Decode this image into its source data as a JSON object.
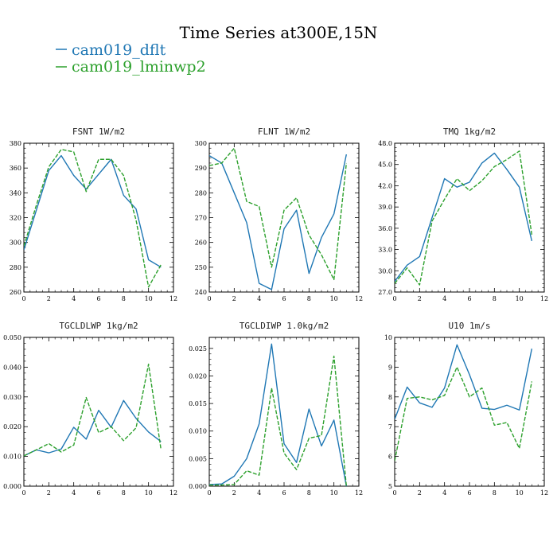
{
  "figure": {
    "title": "Time Series at300E,15N",
    "legend": [
      {
        "name": "cam019_dflt",
        "color": "#1f77b4",
        "dash": "solid"
      },
      {
        "name": "cam019_lminwp2",
        "color": "#2ca02c",
        "dash": "dashed"
      }
    ]
  },
  "chart_data": [
    {
      "type": "line",
      "title": "FSNT  1W/m2",
      "x": [
        0,
        1,
        2,
        3,
        4,
        5,
        6,
        7,
        8,
        9,
        10,
        11
      ],
      "xlim": [
        0,
        12
      ],
      "xticks": [
        0,
        2,
        4,
        6,
        8,
        10,
        12
      ],
      "xtick_labels": [
        "0",
        "2",
        "4",
        "6",
        "8",
        "10",
        "12"
      ],
      "ylim": [
        260,
        380
      ],
      "yticks": [
        260,
        280,
        300,
        320,
        340,
        360,
        380
      ],
      "ytick_labels": [
        "260",
        "280",
        "300",
        "320",
        "340",
        "360",
        "380"
      ],
      "series": [
        {
          "name": "cam019_dflt",
          "values": [
            294,
            326,
            358,
            370,
            354,
            343,
            355,
            367,
            338,
            327,
            286,
            280
          ]
        },
        {
          "name": "cam019_lminwp2",
          "values": [
            297,
            330,
            361,
            375,
            373,
            341,
            367,
            367,
            354,
            318,
            264,
            282
          ]
        }
      ]
    },
    {
      "type": "line",
      "title": "FLNT  1W/m2",
      "x": [
        0,
        1,
        2,
        3,
        4,
        5,
        6,
        7,
        8,
        9,
        10,
        11
      ],
      "xlim": [
        0,
        12
      ],
      "xticks": [
        0,
        2,
        4,
        6,
        8,
        10,
        12
      ],
      "xtick_labels": [
        "0",
        "2",
        "4",
        "6",
        "8",
        "10",
        "12"
      ],
      "ylim": [
        240,
        300
      ],
      "yticks": [
        240,
        250,
        260,
        270,
        280,
        290,
        300
      ],
      "ytick_labels": [
        "240",
        "250",
        "260",
        "270",
        "280",
        "290",
        "300"
      ],
      "series": [
        {
          "name": "cam019_dflt",
          "values": [
            295,
            292,
            280,
            268,
            243.5,
            241,
            265.5,
            273,
            247.5,
            262,
            271.5,
            295.5
          ]
        },
        {
          "name": "cam019_lminwp2",
          "values": [
            291,
            292,
            298,
            276.5,
            274.5,
            250,
            273,
            278,
            263,
            255,
            245,
            292
          ]
        }
      ]
    },
    {
      "type": "line",
      "title": "TMQ  1kg/m2",
      "x": [
        0,
        1,
        2,
        3,
        4,
        5,
        6,
        7,
        8,
        9,
        10,
        11
      ],
      "xlim": [
        0,
        12
      ],
      "xticks": [
        0,
        2,
        4,
        6,
        8,
        10,
        12
      ],
      "xtick_labels": [
        "0",
        "2",
        "4",
        "6",
        "8",
        "10",
        "12"
      ],
      "ylim": [
        27,
        48
      ],
      "yticks": [
        27,
        30,
        33,
        36,
        39,
        42,
        45,
        48
      ],
      "ytick_labels": [
        "27.0",
        "30.0",
        "33.0",
        "36.0",
        "39.0",
        "42.0",
        "45.0",
        "48.0"
      ],
      "series": [
        {
          "name": "cam019_dflt",
          "values": [
            28.5,
            30.8,
            32,
            37.5,
            43,
            41.8,
            42.5,
            45.2,
            46.6,
            44.3,
            41.8,
            34.2
          ]
        },
        {
          "name": "cam019_lminwp2",
          "values": [
            28.2,
            30.4,
            28,
            37,
            40.1,
            43,
            41.3,
            42.7,
            44.7,
            45.7,
            46.9,
            35.1
          ]
        }
      ]
    },
    {
      "type": "line",
      "title": "TGCLDLWP  1kg/m2",
      "x": [
        0,
        1,
        2,
        3,
        4,
        5,
        6,
        7,
        8,
        9,
        10,
        11
      ],
      "xlim": [
        0,
        12
      ],
      "xticks": [
        0,
        2,
        4,
        6,
        8,
        10,
        12
      ],
      "xtick_labels": [
        "0",
        "2",
        "4",
        "6",
        "8",
        "10",
        "12"
      ],
      "ylim": [
        0,
        0.05
      ],
      "yticks": [
        0,
        0.01,
        0.02,
        0.03,
        0.04,
        0.05
      ],
      "ytick_labels": [
        "0.000",
        "0.010",
        "0.020",
        "0.030",
        "0.040",
        "0.050"
      ],
      "series": [
        {
          "name": "cam019_dflt",
          "values": [
            0.0102,
            0.0122,
            0.0112,
            0.0125,
            0.0198,
            0.0158,
            0.0255,
            0.0198,
            0.0288,
            0.0228,
            0.0182,
            0.015
          ]
        },
        {
          "name": "cam019_lminwp2",
          "values": [
            0.0102,
            0.0122,
            0.0143,
            0.0115,
            0.0138,
            0.0298,
            0.018,
            0.02,
            0.0153,
            0.0196,
            0.041,
            0.0123
          ]
        }
      ]
    },
    {
      "type": "line",
      "title": "TGCLDIWP  1.0kg/m2",
      "x": [
        0,
        1,
        2,
        3,
        4,
        5,
        6,
        7,
        8,
        9,
        10,
        11
      ],
      "xlim": [
        0,
        12
      ],
      "xticks": [
        0,
        2,
        4,
        6,
        8,
        10,
        12
      ],
      "xtick_labels": [
        "0",
        "2",
        "4",
        "6",
        "8",
        "10",
        "12"
      ],
      "ylim": [
        0,
        0.027
      ],
      "yticks": [
        0,
        0.005,
        0.01,
        0.015,
        0.02,
        0.025
      ],
      "ytick_labels": [
        "0.000",
        "0.005",
        "0.010",
        "0.015",
        "0.020",
        "0.025"
      ],
      "series": [
        {
          "name": "cam019_dflt",
          "values": [
            0.0003,
            0.0004,
            0.0018,
            0.005,
            0.0113,
            0.0258,
            0.0077,
            0.0043,
            0.014,
            0.0073,
            0.012,
            0
          ]
        },
        {
          "name": "cam019_lminwp2",
          "values": [
            0.0002,
            0.0002,
            0.0003,
            0.0028,
            0.002,
            0.0178,
            0.006,
            0.003,
            0.0087,
            0.0092,
            0.0236,
            0
          ]
        }
      ]
    },
    {
      "type": "line",
      "title": "U10  1m/s",
      "x": [
        0,
        1,
        2,
        3,
        4,
        5,
        6,
        7,
        8,
        9,
        10,
        11
      ],
      "xlim": [
        0,
        12
      ],
      "xticks": [
        0,
        2,
        4,
        6,
        8,
        10,
        12
      ],
      "xtick_labels": [
        "0",
        "2",
        "4",
        "6",
        "8",
        "10",
        "12"
      ],
      "ylim": [
        5,
        10
      ],
      "yticks": [
        5,
        6,
        7,
        8,
        9,
        10
      ],
      "ytick_labels": [
        "5",
        "6",
        "7",
        "8",
        "9",
        "10"
      ],
      "series": [
        {
          "name": "cam019_dflt",
          "values": [
            7.25,
            8.33,
            7.8,
            7.65,
            8.3,
            9.75,
            8.75,
            7.62,
            7.58,
            7.72,
            7.56,
            9.62
          ]
        },
        {
          "name": "cam019_lminwp2",
          "values": [
            5.85,
            7.95,
            8,
            7.9,
            8.05,
            9,
            8,
            8.3,
            7.05,
            7.14,
            6.27,
            8.52
          ]
        }
      ]
    }
  ]
}
